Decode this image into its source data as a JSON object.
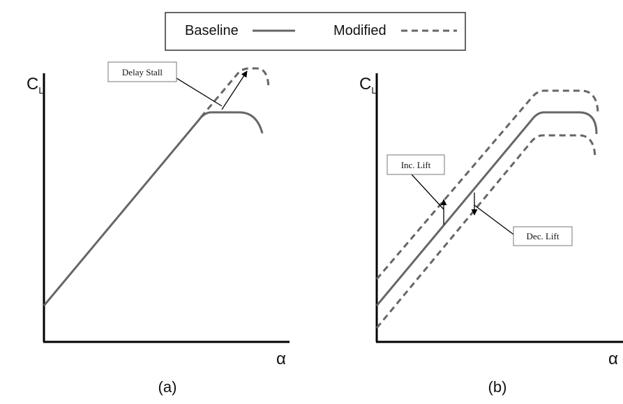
{
  "legend": {
    "baseline": "Baseline",
    "modified": "Modified"
  },
  "panels": [
    {
      "y_axis": "C",
      "y_axis_sub": "L",
      "x_axis": "α",
      "caption": "(a)",
      "annotations": [
        "Delay Stall"
      ]
    },
    {
      "y_axis": "C",
      "y_axis_sub": "L",
      "x_axis": "α",
      "caption": "(b)",
      "annotations": [
        "Inc. Lift",
        "Dec. Lift"
      ]
    }
  ]
}
